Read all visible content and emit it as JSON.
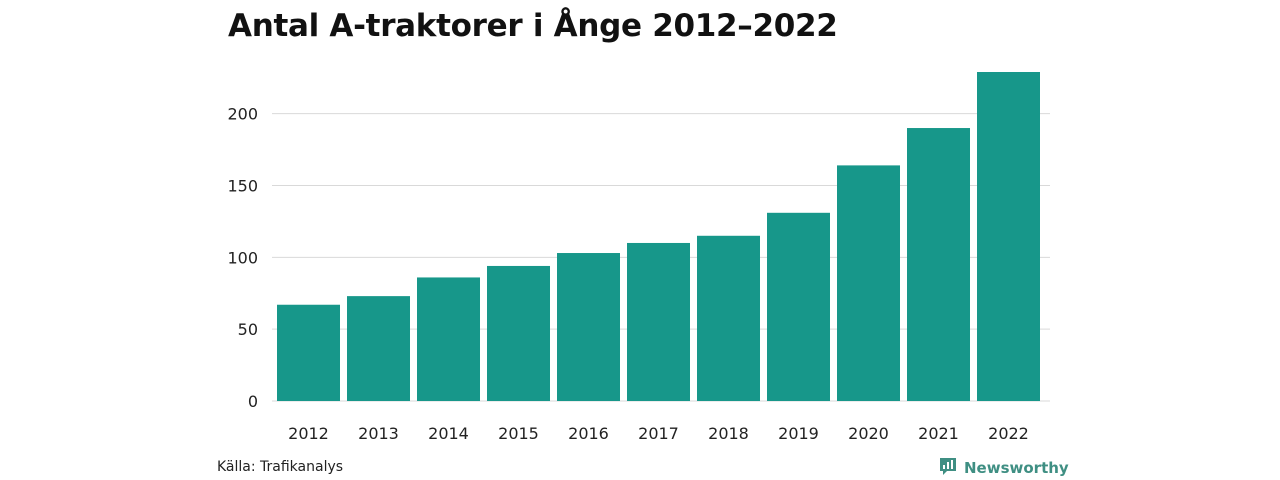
{
  "title": "Antal A-traktorer i Ånge 2012–2022",
  "source": "Källa: Trafikanalys",
  "brand": {
    "name": "Newsworthy",
    "icon": "newsworthy-logo-icon",
    "color": "#3f8f83"
  },
  "chart_data": {
    "type": "bar",
    "categories": [
      "2012",
      "2013",
      "2014",
      "2015",
      "2016",
      "2017",
      "2018",
      "2019",
      "2020",
      "2021",
      "2022"
    ],
    "values": [
      67,
      73,
      86,
      94,
      103,
      110,
      115,
      131,
      164,
      190,
      229
    ],
    "title": "Antal A-traktorer i Ånge 2012–2022",
    "xlabel": "",
    "ylabel": "",
    "ylim": [
      0,
      229
    ],
    "yticks": [
      0,
      50,
      100,
      150,
      200
    ],
    "grid": true,
    "legend": "none",
    "bar_color": "#17978a"
  }
}
